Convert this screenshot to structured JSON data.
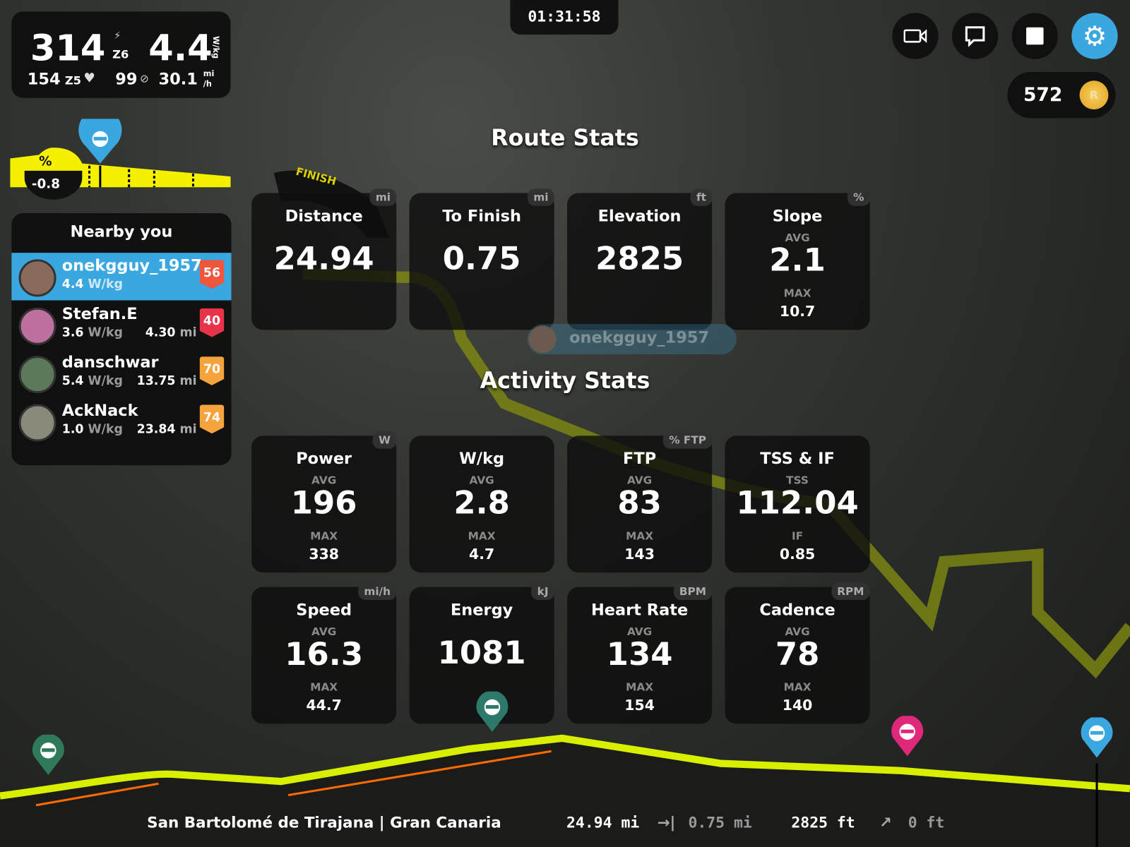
{
  "hud": {
    "power": "314",
    "power_zone": "Z6",
    "wkg": "4.4",
    "wkg_unit": "W/kg",
    "hr": "154",
    "hr_zone": "Z5",
    "cadence": "99",
    "speed": "30.1",
    "speed_unit_top": "mi",
    "speed_unit_bottom": "/h",
    "icons": [
      "lightning-icon",
      "heart-icon",
      "cadence-icon"
    ]
  },
  "timer": "01:31:58",
  "toolbar": {
    "buttons": [
      "camera-icon",
      "chat-icon",
      "stop-icon",
      "gear-icon"
    ],
    "accent": "#3aa7e0"
  },
  "coins": {
    "value": "572",
    "icon": "coin-icon"
  },
  "slope": {
    "label": "%",
    "value": "-0.8",
    "color": "#f4f000"
  },
  "nearby": {
    "title": "Nearby you",
    "riders": [
      {
        "name": "onekgguy_1957",
        "wkg": "4.4",
        "unit": "W/kg",
        "dist": "",
        "dist_unit": "",
        "level": "56",
        "badge_color": "#f0563c",
        "highlight": true
      },
      {
        "name": "Stefan.E",
        "wkg": "3.6",
        "unit": "W/kg",
        "dist": "4.30",
        "dist_unit": "mi",
        "level": "40",
        "badge_color": "#e8344a"
      },
      {
        "name": "danschwar",
        "wkg": "5.4",
        "unit": "W/kg",
        "dist": "13.75",
        "dist_unit": "mi",
        "level": "70",
        "badge_color": "#f5a33c"
      },
      {
        "name": "AckNack",
        "wkg": "1.0",
        "unit": "W/kg",
        "dist": "23.84",
        "dist_unit": "mi",
        "level": "74",
        "badge_color": "#f5a33c"
      }
    ]
  },
  "route_stats": {
    "title": "Route Stats",
    "cards": [
      {
        "title": "Distance",
        "unit": "mi",
        "value": "24.94"
      },
      {
        "title": "To Finish",
        "unit": "mi",
        "value": "0.75"
      },
      {
        "title": "Elevation",
        "unit": "ft",
        "value": "2825"
      },
      {
        "title": "Slope",
        "unit": "%",
        "avg_label": "AVG",
        "value": "2.1",
        "max_label": "MAX",
        "max": "10.7"
      }
    ]
  },
  "map_label": "onekgguy_1957",
  "finish_label": "FINISH",
  "activity_stats": {
    "title": "Activity Stats",
    "cards": [
      {
        "title": "Power",
        "unit": "W",
        "avg_label": "AVG",
        "value": "196",
        "max_label": "MAX",
        "max": "338"
      },
      {
        "title": "W/kg",
        "unit": "",
        "avg_label": "AVG",
        "value": "2.8",
        "max_label": "MAX",
        "max": "4.7"
      },
      {
        "title": "FTP",
        "unit": "% FTP",
        "avg_label": "AVG",
        "value": "83",
        "max_label": "MAX",
        "max": "143"
      },
      {
        "title": "TSS & IF",
        "unit": "",
        "avg_label": "TSS",
        "value": "112.04",
        "max_label": "IF",
        "max": "0.85"
      },
      {
        "title": "Speed",
        "unit": "mi/h",
        "avg_label": "AVG",
        "value": "16.3",
        "max_label": "MAX",
        "max": "44.7"
      },
      {
        "title": "Energy",
        "unit": "kJ",
        "value": "1081"
      },
      {
        "title": "Heart Rate",
        "unit": "BPM",
        "avg_label": "AVG",
        "value": "134",
        "max_label": "MAX",
        "max": "154"
      },
      {
        "title": "Cadence",
        "unit": "RPM",
        "avg_label": "AVG",
        "value": "78",
        "max_label": "MAX",
        "max": "140"
      }
    ]
  },
  "bottom": {
    "location": "San Bartolomé de Tirajana | Gran Canaria",
    "distance": "24.94 mi",
    "to_finish": "0.75 mi",
    "elevation": "2825 ft",
    "climb": "0 ft"
  }
}
